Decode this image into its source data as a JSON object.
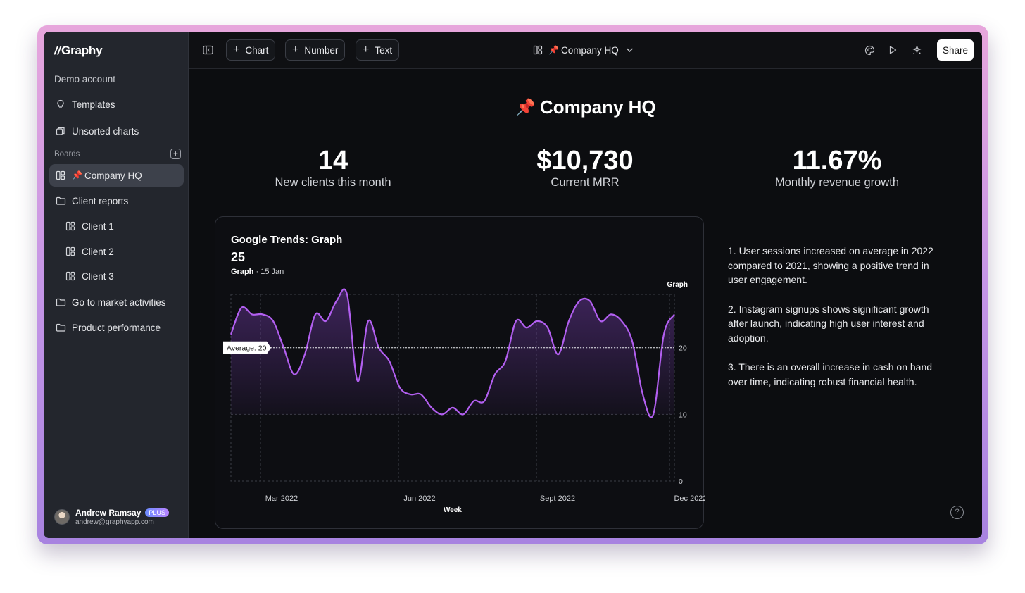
{
  "app": {
    "logo": "Graphy"
  },
  "sidebar": {
    "account": "Demo account",
    "templates": "Templates",
    "unsorted": "Unsorted charts",
    "boards_label": "Boards",
    "items": [
      {
        "label": "Company HQ",
        "emoji": "📌"
      },
      {
        "label": "Client reports"
      },
      {
        "label": "Client 1"
      },
      {
        "label": "Client 2"
      },
      {
        "label": "Client 3"
      },
      {
        "label": "Go to market activities"
      },
      {
        "label": "Product performance"
      }
    ],
    "user": {
      "name": "Andrew Ramsay",
      "plan": "PLUS",
      "email": "andrew@graphyapp.com"
    }
  },
  "toolbar": {
    "chart_label": "Chart",
    "number_label": "Number",
    "text_label": "Text",
    "board_title": "Company HQ",
    "board_emoji": "📌",
    "share_label": "Share"
  },
  "dashboard": {
    "title": "Company HQ",
    "emoji": "📌",
    "stats": [
      {
        "value": "14",
        "label": "New clients this month"
      },
      {
        "value": "$10,730",
        "label": "Current MRR"
      },
      {
        "value": "11.67%",
        "label": "Monthly revenue growth"
      }
    ],
    "notes": [
      "1. User sessions increased on average in 2022 compared to 2021, showing a positive trend in user engagement.",
      "2. Instagram signups shows significant growth after launch, indicating high user interest and adoption.",
      "3. There is an overall increase in cash on hand over time, indicating robust financial health."
    ],
    "help": "?"
  },
  "card": {
    "title": "Google Trends: Graph",
    "value": "25",
    "sub_series": "Graph",
    "sub_sep": "·",
    "sub_date": "15 Jan"
  },
  "chart_data": {
    "type": "area",
    "title": "Google Trends: Graph",
    "series": [
      {
        "name": "Graph",
        "color": "#b25ff0",
        "values": [
          22,
          26,
          25,
          25,
          24,
          20,
          16,
          19,
          25,
          24,
          27,
          28,
          15,
          24,
          20,
          18,
          14,
          13,
          13,
          11,
          10,
          11,
          10,
          12,
          12,
          16,
          18,
          24,
          23,
          24,
          23,
          19,
          24,
          27,
          27,
          24,
          25,
          24,
          21,
          13,
          10,
          22,
          25
        ]
      }
    ],
    "x_ticks": [
      "Mar 2022",
      "Jun 2022",
      "Sept 2022",
      "Dec 2022"
    ],
    "xlabel": "Week",
    "y_ticks": [
      0,
      10,
      20
    ],
    "ylim": [
      0,
      28
    ],
    "right_axis_label": "Graph",
    "average": {
      "value": 20,
      "label": "Average: 20"
    },
    "grid": true
  }
}
